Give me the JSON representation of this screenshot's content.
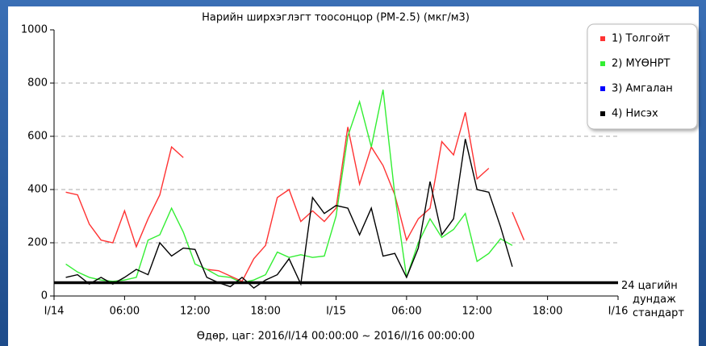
{
  "chart_data": {
    "type": "line",
    "title": "Нарийн ширхэглэгт тоосонцор (PM-2.5) (мкг/м3)",
    "xlabel": "Өдөр, цаг: 2016/I/14 00:00:00 ~ 2016/I/16 00:00:00",
    "x": [
      1,
      2,
      3,
      4,
      5,
      6,
      7,
      8,
      9,
      10,
      11,
      12,
      13,
      14,
      15,
      16,
      17,
      18,
      19,
      20,
      21,
      22,
      23,
      24,
      25,
      26,
      27,
      28,
      29,
      30,
      31,
      32,
      33,
      34,
      35,
      36,
      37,
      38,
      39,
      40,
      41,
      42,
      43,
      44,
      45,
      46,
      47
    ],
    "series": [
      {
        "name": "1) Толгойт",
        "color": "#ff3333",
        "values": [
          390,
          380,
          270,
          210,
          200,
          320,
          185,
          290,
          380,
          560,
          520,
          null,
          100,
          95,
          75,
          55,
          140,
          190,
          370,
          400,
          280,
          320,
          280,
          330,
          635,
          420,
          560,
          490,
          380,
          210,
          290,
          330,
          580,
          530,
          690,
          440,
          480,
          null,
          315,
          210,
          null,
          null,
          null,
          null,
          null,
          null,
          null
        ]
      },
      {
        "name": "2) МҮӨНРТ",
        "color": "#33ee33",
        "values": [
          120,
          90,
          70,
          60,
          55,
          60,
          70,
          210,
          230,
          330,
          240,
          120,
          100,
          75,
          70,
          50,
          60,
          80,
          165,
          145,
          155,
          145,
          150,
          300,
          600,
          730,
          560,
          775,
          380,
          70,
          200,
          290,
          220,
          250,
          310,
          130,
          160,
          215,
          190,
          null,
          null,
          null,
          null,
          null,
          null,
          null,
          null
        ]
      },
      {
        "name": "3) Амгалан",
        "color": "#0000ff",
        "values": [
          null,
          null,
          null,
          null,
          null,
          null,
          null,
          null,
          null,
          null,
          null,
          null,
          null,
          null,
          null,
          null,
          null,
          null,
          null,
          null,
          null,
          null,
          null,
          null,
          null,
          null,
          null,
          null,
          null,
          null,
          null,
          null,
          null,
          null,
          null,
          null,
          null,
          null,
          null,
          null,
          null,
          null,
          null,
          null,
          null,
          null,
          null
        ]
      },
      {
        "name": "4) Нисэх",
        "color": "#000000",
        "values": [
          70,
          80,
          45,
          70,
          45,
          70,
          100,
          80,
          200,
          150,
          180,
          175,
          70,
          50,
          35,
          70,
          30,
          60,
          80,
          140,
          45,
          370,
          310,
          340,
          330,
          230,
          330,
          150,
          160,
          70,
          180,
          430,
          230,
          290,
          590,
          400,
          390,
          260,
          110,
          null,
          null,
          null,
          null,
          null,
          null,
          null,
          null
        ]
      }
    ],
    "xlim": [
      0,
      48
    ],
    "xticks": [
      {
        "value": 0,
        "label": "I/14"
      },
      {
        "value": 6,
        "label": "06:00"
      },
      {
        "value": 12,
        "label": "12:00"
      },
      {
        "value": 18,
        "label": "18:00"
      },
      {
        "value": 24,
        "label": "I/15"
      },
      {
        "value": 30,
        "label": "06:00"
      },
      {
        "value": 36,
        "label": "12:00"
      },
      {
        "value": 42,
        "label": "18:00"
      },
      {
        "value": 48,
        "label": "I/16"
      }
    ],
    "ylim": [
      0,
      1000
    ],
    "yticks": [
      0,
      200,
      400,
      600,
      800,
      1000
    ],
    "grid": true,
    "legend": "top-right",
    "reference_line": {
      "value": 50,
      "label": [
        "24 цагийн",
        "дундаж",
        "стандарт"
      ]
    }
  }
}
